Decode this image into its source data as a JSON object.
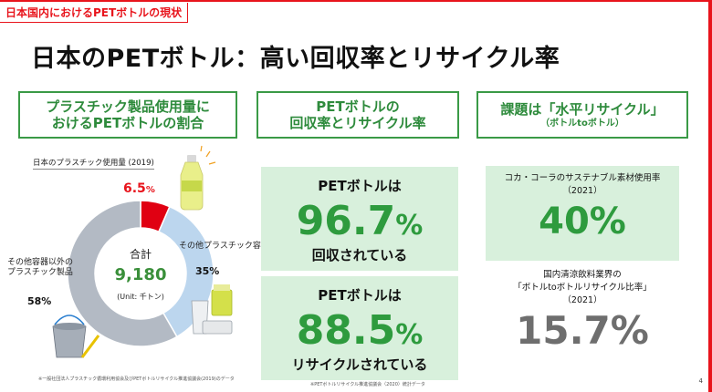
{
  "breadcrumb": "日本国内におけるPETボトルの現状",
  "title": "日本のPETボトル：高い回収率とリサイクル率",
  "headers": {
    "left": {
      "line1": "プラスチック製品使用量に",
      "line2": "おけるPETボトルの割合"
    },
    "middle": {
      "line1": "PETボトルの",
      "line2": "回収率とリサイクル率"
    },
    "right": {
      "line1": "課題は「水平リサイクル」",
      "sub": "（ボトルtoボトル）"
    }
  },
  "chart_data": {
    "type": "pie",
    "title": "日本のプラスチック使用量 (2019)",
    "slices": [
      {
        "label": "PETボトル",
        "value": 6.5,
        "display": "6.5",
        "unit": "%",
        "color": "#e00012"
      },
      {
        "label": "その他プラスチック容器",
        "value": 35,
        "display": "35%",
        "color": "#bcd6ee"
      },
      {
        "label": "その他容器以外のプラスチック製品",
        "value": 58,
        "display": "58%",
        "color": "#b3bac4"
      }
    ],
    "center": {
      "label": "合計",
      "value": "9,180",
      "unit": "(Unit: 千トン)"
    }
  },
  "chart_labels": {
    "other_containers": "その他プラスチック容器",
    "other_products_line1": "その他容器以外の",
    "other_products_line2": "プラスチック製品"
  },
  "footnotes": {
    "left": "※一般社団法人プラスチック循環利用協会及びPETボトルリサイクル推進協議会(2019)のデータ",
    "middle": "※PETボトルリサイクル推進協議会（2020）統計データ"
  },
  "collection": {
    "label": "PETボトルは",
    "value": "96.7",
    "unit": "%",
    "sub": "回収されている"
  },
  "recycling": {
    "label": "PETボトルは",
    "value": "88.5",
    "unit": "%",
    "sub": "リサイクルされている"
  },
  "cocacola": {
    "label": "コカ・コーラのサステナブル素材使用率",
    "year": "（2021）",
    "value": "40%"
  },
  "industry": {
    "line1": "国内清涼飲料業界の",
    "line2": "「ボトルtoボトルリサイクル比率」",
    "year": "（2021）",
    "value": "15.7%"
  },
  "page_number": "4",
  "colors": {
    "accent_red": "#e8141c",
    "green": "#2e9b3e",
    "box_green": "#d8f0dc"
  }
}
